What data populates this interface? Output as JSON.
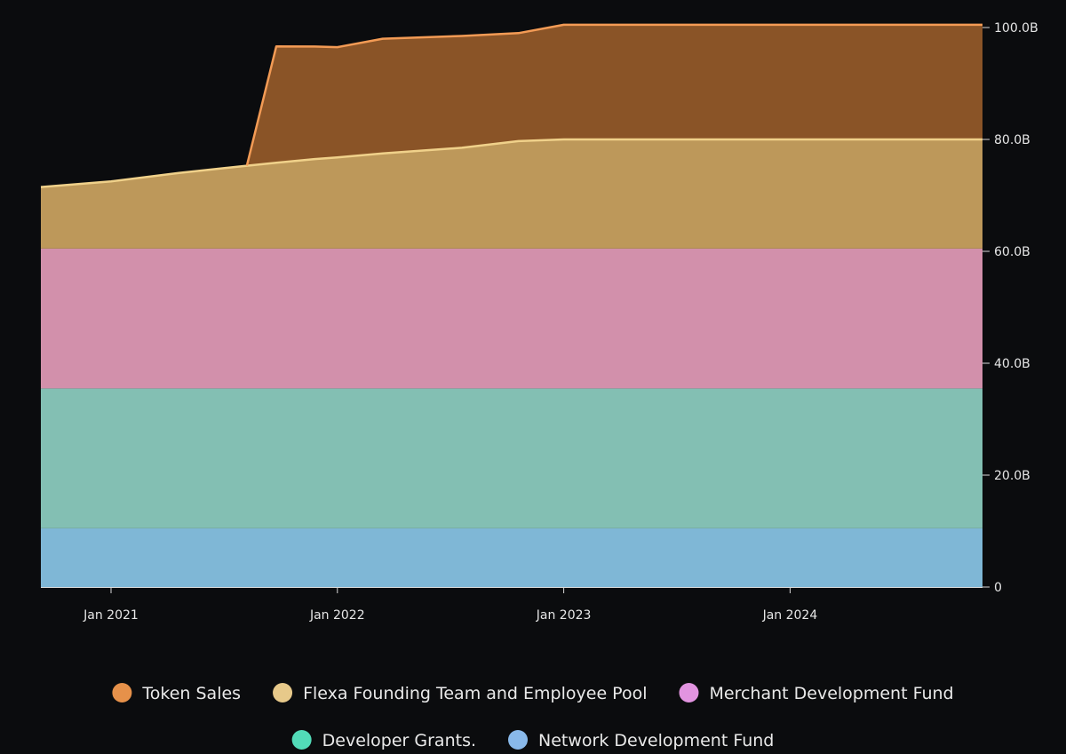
{
  "chart_data": {
    "type": "area",
    "stacked": true,
    "title": "",
    "xlabel": "",
    "ylabel": "",
    "x_ticks": [
      {
        "label": "Jan 2021",
        "date": 2021.0
      },
      {
        "label": "Jan 2022",
        "date": 2022.0
      },
      {
        "label": "Jan 2023",
        "date": 2023.0
      },
      {
        "label": "Jan 2024",
        "date": 2024.0
      }
    ],
    "xlim": [
      2020.69,
      2024.85
    ],
    "y_ticks": [
      {
        "label": "0",
        "value": 0
      },
      {
        "label": "20.0B",
        "value": 20
      },
      {
        "label": "40.0B",
        "value": 40
      },
      {
        "label": "60.0B",
        "value": 60
      },
      {
        "label": "80.0B",
        "value": 80
      },
      {
        "label": "100.0B",
        "value": 100
      }
    ],
    "ylim": [
      0,
      100
    ],
    "unit": "B",
    "legend_position": "bottom",
    "series": [
      {
        "name": "Network Development Fund",
        "legend_color": "#89b9ea",
        "fill_color": "#7fb7d6",
        "points": [
          [
            2020.69,
            10.5
          ],
          [
            2024.85,
            10.5
          ]
        ]
      },
      {
        "name": "Developer Grants.",
        "legend_color": "#52dbb8",
        "fill_color": "#83bfb3",
        "points": [
          [
            2020.69,
            25.0
          ],
          [
            2024.85,
            25.0
          ]
        ]
      },
      {
        "name": "Merchant Development Fund",
        "legend_color": "#e294e0",
        "fill_color": "#d290ab",
        "points": [
          [
            2020.69,
            25.0
          ],
          [
            2024.85,
            25.0
          ]
        ]
      },
      {
        "name": "Flexa Founding Team and Employee Pool",
        "legend_color": "#e7c98a",
        "fill_color": "#bd985a",
        "line_color": "#f0d18a",
        "points": [
          [
            2020.69,
            11.0
          ],
          [
            2021.0,
            12.0
          ],
          [
            2021.3,
            13.5
          ],
          [
            2021.6,
            14.8
          ],
          [
            2021.9,
            16.0
          ],
          [
            2022.0,
            16.3
          ],
          [
            2022.2,
            17.0
          ],
          [
            2022.55,
            18.0
          ],
          [
            2022.8,
            19.2
          ],
          [
            2023.0,
            19.5
          ],
          [
            2023.5,
            19.5
          ],
          [
            2024.0,
            19.5
          ],
          [
            2024.85,
            19.5
          ]
        ]
      },
      {
        "name": "Token Sales",
        "legend_color": "#e6914a",
        "fill_color": "#8a5427",
        "line_color": "#f39b55",
        "points": [
          [
            2020.69,
            0
          ],
          [
            2021.6,
            0
          ],
          [
            2021.73,
            20.8
          ],
          [
            2022.0,
            19.7
          ],
          [
            2022.2,
            20.5
          ],
          [
            2022.55,
            20.0
          ],
          [
            2022.8,
            19.3
          ],
          [
            2023.0,
            20.5
          ],
          [
            2024.0,
            20.5
          ],
          [
            2024.85,
            20.5
          ]
        ]
      }
    ],
    "legend": [
      "Token Sales",
      "Flexa Founding Team and Employee Pool",
      "Merchant Development Fund",
      "Developer Grants.",
      "Network Development Fund"
    ]
  }
}
